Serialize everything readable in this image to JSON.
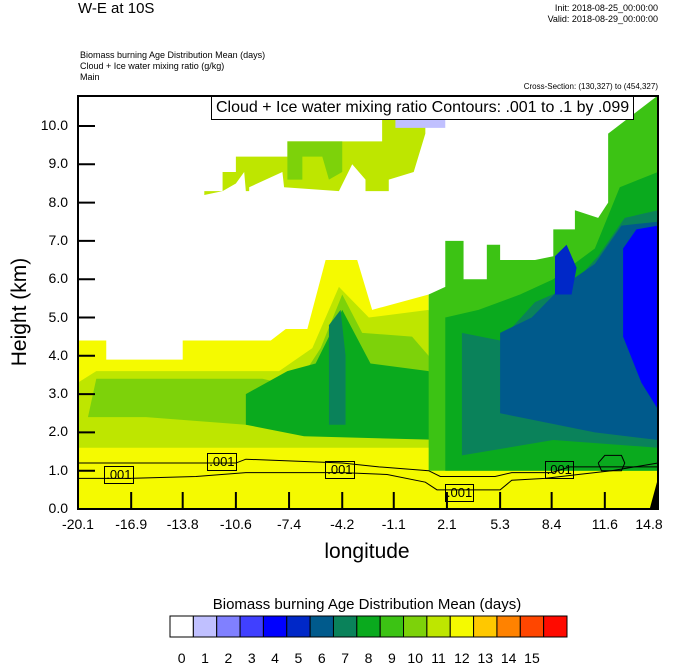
{
  "header": {
    "title": "W-E at 10S",
    "init": "Init: 2018-08-25_00:00:00",
    "valid": "Valid: 2018-08-29_00:00:00",
    "subtitles": [
      "Biomass burning Age Distribution Mean   (days)",
      "Cloud + Ice water mixing ratio   (g/kg)",
      "Main"
    ],
    "cross_section": "Cross-Section: (130,327) to (454,327)",
    "contour_title": "Cloud + Ice water mixing ratio Contours: .001 to .1 by .099"
  },
  "chart_data": {
    "type": "heatmap",
    "title": "W-E at 10S",
    "xlabel": "longitude",
    "ylabel": "Height (km)",
    "xlim": [
      -20.1,
      14.8
    ],
    "ylim": [
      0.0,
      10.8
    ],
    "x_ticks": [
      "-20.1",
      "-16.9",
      "-13.8",
      "-10.6",
      "-7.4",
      "-4.2",
      "-1.1",
      "2.1",
      "5.3",
      "8.4",
      "11.6",
      "14.8"
    ],
    "x_tick_values": [
      -20.1,
      -16.9,
      -13.8,
      -10.6,
      -7.4,
      -4.2,
      -1.1,
      2.1,
      5.3,
      8.4,
      11.6,
      14.8
    ],
    "y_ticks": [
      "0.0",
      "1.0",
      "2.0",
      "3.0",
      "4.0",
      "5.0",
      "6.0",
      "7.0",
      "8.0",
      "9.0",
      "10.0"
    ],
    "y_tick_values": [
      0,
      1,
      2,
      3,
      4,
      5,
      6,
      7,
      8,
      9,
      10
    ],
    "colorbar": {
      "title": "Biomass burning Age Distribution Mean  (days)",
      "labels": [
        "0",
        "1",
        "2",
        "3",
        "4",
        "5",
        "6",
        "7",
        "8",
        "9",
        "10",
        "11",
        "12",
        "13",
        "14",
        "15"
      ],
      "colors": [
        "#ffffff",
        "#c0c0ff",
        "#8080ff",
        "#4040ff",
        "#0000ff",
        "#0028c8",
        "#005a8c",
        "#0a825a",
        "#0aaa1e",
        "#3cc314",
        "#7dd20a",
        "#bee600",
        "#f5fa00",
        "#ffc800",
        "#ff8200",
        "#ff4600",
        "#ff0a00"
      ]
    },
    "contour_labels": [
      ".001",
      ".001",
      ".001",
      ".001",
      ".001"
    ],
    "regions": [
      {
        "name": "upper-cloud-west",
        "x": [
          -12.5,
          -0.8
        ],
        "y": [
          8.2,
          9.6
        ],
        "value_bin": 11
      },
      {
        "name": "upper-cloud-core",
        "x": [
          -9.5,
          -4.0
        ],
        "y": [
          8.6,
          9.6
        ],
        "value_bin": 10
      },
      {
        "name": "upper-cloud-cap",
        "x": [
          -2.9,
          0.8
        ],
        "y": [
          9.6,
          10.6
        ],
        "value_bin": 11
      },
      {
        "name": "upper-pale-blue",
        "x": [
          -1.1,
          2.0
        ],
        "y": [
          9.95,
          10.2
        ],
        "value_bin": 1
      },
      {
        "name": "low-yellow-band",
        "x": [
          -20.1,
          14.8
        ],
        "y": [
          0.0,
          1.5
        ],
        "value_bin": 12
      },
      {
        "name": "mid-layer-green",
        "x": [
          -20.1,
          3.0
        ],
        "y": [
          1.5,
          4.4
        ],
        "value_bin": 10
      },
      {
        "name": "east-deep-layer",
        "x": [
          2.0,
          14.8
        ],
        "y": [
          1.0,
          8.0
        ],
        "value_bin": 6
      },
      {
        "name": "east-core-blue",
        "x": [
          12.5,
          14.8
        ],
        "y": [
          4.5,
          7.5
        ],
        "value_bin": 4
      }
    ]
  }
}
